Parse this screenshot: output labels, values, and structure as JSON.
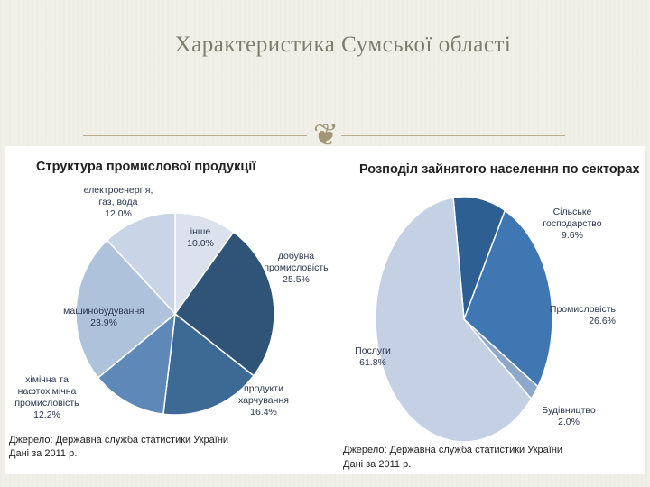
{
  "slide": {
    "title": "Характеристика Сумської області",
    "ornament": "❦"
  },
  "chart_data": [
    {
      "type": "pie",
      "title": "Структура промислової продукції",
      "categories": [
        "інше",
        "добувна промисловість",
        "продукти харчування",
        "хімічна та нафтохімічна промисловість",
        "машинобудування",
        "електроенергія, газ, вода"
      ],
      "label_lines": [
        [
          "інше",
          "10.0%"
        ],
        [
          "добувна",
          "промисловість",
          "25.5%"
        ],
        [
          "продукти",
          "харчування",
          "16.4%"
        ],
        [
          "хімічна та",
          "нафтохімічна",
          "промисловість",
          "12.2%"
        ],
        [
          "машинобудування",
          "23.9%"
        ],
        [
          "електроенергія,",
          "газ, вода",
          "12.0%"
        ]
      ],
      "values": [
        10.0,
        25.5,
        16.4,
        12.2,
        23.9,
        12.0
      ],
      "colors": [
        "#dbe2ee",
        "#2f5478",
        "#3c6a95",
        "#5d88b8",
        "#afc2dc",
        "#c9d5e6"
      ],
      "source": [
        "Джерело: Державна служба статистики України",
        "Дані за 2011 р."
      ]
    },
    {
      "type": "pie",
      "title": "Розподіл зайнятого населення по секторах",
      "categories": [
        "Сільське господарство",
        "Промисловість",
        "Будівництво",
        "Послуги"
      ],
      "label_lines": [
        [
          "Сільське",
          "господарство",
          "9.6%"
        ],
        [
          "Промисловість",
          "26.6%"
        ],
        [
          "Будівництво",
          "2.0%"
        ],
        [
          "Послуги",
          "61.8%"
        ]
      ],
      "values": [
        9.6,
        26.6,
        2.0,
        61.8
      ],
      "colors": [
        "#2e5f93",
        "#3f77b3",
        "#8ea8cb",
        "#c4d1e5"
      ],
      "source": [
        "Джерело: Державна служба статистики України",
        "Дані за 2011 р."
      ]
    }
  ]
}
